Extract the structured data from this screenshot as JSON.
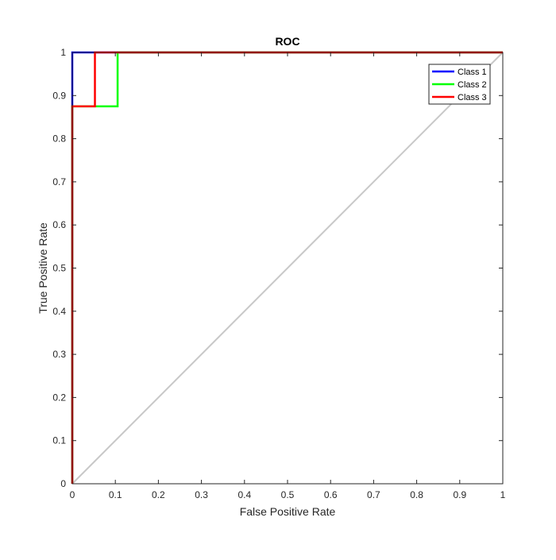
{
  "chart_data": {
    "type": "line",
    "title": "ROC",
    "xlabel": "False Positive Rate",
    "ylabel": "True Positive Rate",
    "xlim": [
      0,
      1
    ],
    "ylim": [
      0,
      1
    ],
    "xticks": [
      "0",
      "0.1",
      "0.2",
      "0.3",
      "0.4",
      "0.5",
      "0.6",
      "0.7",
      "0.8",
      "0.9",
      "1"
    ],
    "yticks": [
      "0",
      "0.1",
      "0.2",
      "0.3",
      "0.4",
      "0.5",
      "0.6",
      "0.7",
      "0.8",
      "0.9",
      "1"
    ],
    "grid": false,
    "legend_position": "top-right",
    "reference_line": {
      "x": [
        0,
        1
      ],
      "y": [
        0,
        1
      ],
      "color": "#c8c8c8"
    },
    "series": [
      {
        "name": "Class 1",
        "color": "#0000ff",
        "x": [
          0,
          0,
          0,
          0.0526,
          1
        ],
        "y": [
          0,
          0.875,
          1,
          1,
          1
        ]
      },
      {
        "name": "Class 2",
        "color": "#00ff00",
        "x": [
          0,
          0,
          0.1053,
          0.1053,
          1
        ],
        "y": [
          0,
          0.875,
          0.875,
          1,
          1
        ]
      },
      {
        "name": "Class 3",
        "color": "#ff0000",
        "x": [
          0,
          0,
          0.0526,
          0.0526,
          1
        ],
        "y": [
          0,
          0.875,
          0.875,
          1,
          1
        ]
      }
    ]
  }
}
